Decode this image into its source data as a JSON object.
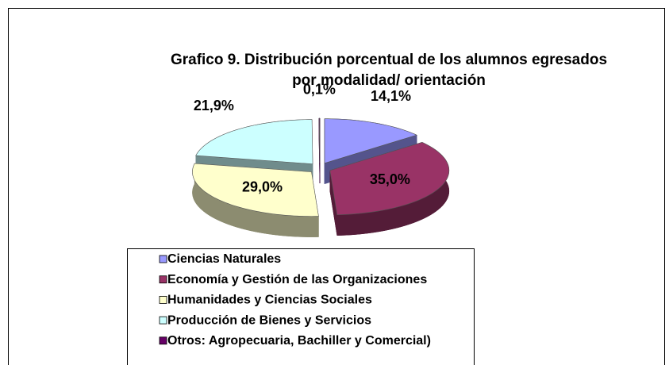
{
  "chart_data": {
    "type": "pie",
    "title": "Grafico 9. Distribución porcentual de los alumnos egresados",
    "subtitle": "por modalidad/ orientación",
    "categories": [
      "Ciencias Naturales",
      "Economía y Gestión de las Organizaciones",
      "Humanidades y Ciencias Sociales",
      "Producción de Bienes y Servicios",
      "Otros: Agropecuaria, Bachiller y Comercial)"
    ],
    "values": [
      14.1,
      35.0,
      29.0,
      21.9,
      0.1
    ],
    "value_labels": [
      "14,1%",
      "35,0%",
      "29,0%",
      "21,9%",
      "0,1%"
    ],
    "colors": [
      "#9999ff",
      "#993366",
      "#ffffcc",
      "#ccffff",
      "#660066"
    ],
    "legend": "bottom"
  }
}
